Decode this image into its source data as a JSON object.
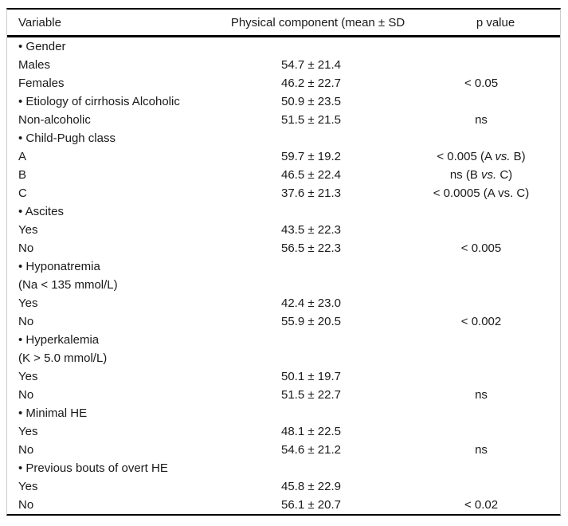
{
  "colors": {
    "background": "#ffffff",
    "rule_black": "#000000",
    "frame_gray": "#cccccc",
    "text": "#1a1a1a"
  },
  "table": {
    "headers": [
      "Variable",
      "Physical component (mean ± SD",
      "p value"
    ],
    "rows": [
      {
        "variable": "• Gender",
        "mean_sd": "",
        "p": []
      },
      {
        "variable": "Males",
        "mean_sd": "54.7 ± 21.4",
        "p": []
      },
      {
        "variable": "Females",
        "mean_sd": "46.2 ± 22.7",
        "p": [
          {
            "text": "< 0.05"
          }
        ]
      },
      {
        "variable": "• Etiology of cirrhosis Alcoholic",
        "mean_sd": "50.9 ± 23.5",
        "p": []
      },
      {
        "variable": "Non-alcoholic",
        "mean_sd": "51.5 ± 21.5",
        "p": [
          {
            "text": "ns"
          }
        ]
      },
      {
        "variable": "• Child-Pugh class",
        "mean_sd": "",
        "p": []
      },
      {
        "variable": "A",
        "mean_sd": "59.7 ± 19.2",
        "p": [
          {
            "text": "< 0.005 (A "
          },
          {
            "text": "vs.",
            "italic": true
          },
          {
            "text": " B)"
          }
        ]
      },
      {
        "variable": "B",
        "mean_sd": "46.5 ± 22.4",
        "p": [
          {
            "text": "ns (B "
          },
          {
            "text": "vs.",
            "italic": true
          },
          {
            "text": " C)"
          }
        ]
      },
      {
        "variable": "C",
        "mean_sd": "37.6 ± 21.3",
        "p": [
          {
            "text": "< 0.0005 (A vs. C)"
          }
        ]
      },
      {
        "variable": "• Ascites",
        "mean_sd": "",
        "p": []
      },
      {
        "variable": "Yes",
        "mean_sd": "43.5 ± 22.3",
        "p": []
      },
      {
        "variable": "No",
        "mean_sd": "56.5 ± 22.3",
        "p": [
          {
            "text": "< 0.005"
          }
        ]
      },
      {
        "variable": "• Hyponatremia",
        "mean_sd": "",
        "p": []
      },
      {
        "variable": "(Na < 135 mmol/L)",
        "mean_sd": "",
        "p": []
      },
      {
        "variable": "Yes",
        "mean_sd": "42.4 ± 23.0",
        "p": []
      },
      {
        "variable": "No",
        "mean_sd": "55.9 ± 20.5",
        "p": [
          {
            "text": "< 0.002"
          }
        ]
      },
      {
        "variable": "• Hyperkalemia",
        "mean_sd": "",
        "p": []
      },
      {
        "variable": "(K > 5.0 mmol/L)",
        "mean_sd": "",
        "p": []
      },
      {
        "variable": "Yes",
        "mean_sd": "50.1 ± 19.7",
        "p": []
      },
      {
        "variable": "No",
        "mean_sd": "51.5 ± 22.7",
        "p": [
          {
            "text": "ns"
          }
        ]
      },
      {
        "variable": "• Minimal HE",
        "mean_sd": "",
        "p": []
      },
      {
        "variable": "Yes",
        "mean_sd": "48.1 ± 22.5",
        "p": []
      },
      {
        "variable": "No",
        "mean_sd": "54.6 ± 21.2",
        "p": [
          {
            "text": "ns"
          }
        ]
      },
      {
        "variable": "• Previous bouts of overt HE",
        "mean_sd": "",
        "p": []
      },
      {
        "variable": "Yes",
        "mean_sd": "45.8 ± 22.9",
        "p": []
      },
      {
        "variable": "No",
        "mean_sd": "56.1 ± 20.7",
        "p": [
          {
            "text": "< 0.02"
          }
        ]
      }
    ]
  }
}
